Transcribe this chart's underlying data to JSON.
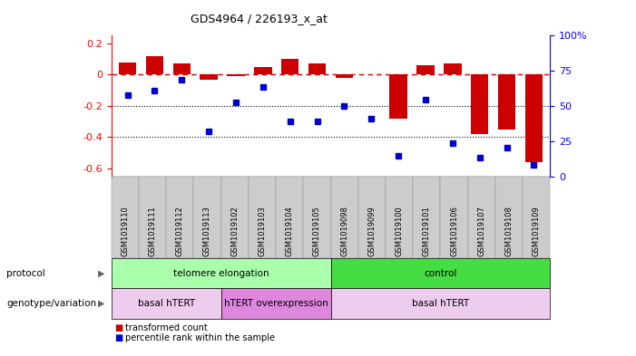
{
  "title": "GDS4964 / 226193_x_at",
  "categories": [
    "GSM1019110",
    "GSM1019111",
    "GSM1019112",
    "GSM1019113",
    "GSM1019102",
    "GSM1019103",
    "GSM1019104",
    "GSM1019105",
    "GSM1019098",
    "GSM1019099",
    "GSM1019100",
    "GSM1019101",
    "GSM1019106",
    "GSM1019107",
    "GSM1019108",
    "GSM1019109"
  ],
  "bar_values": [
    0.08,
    0.12,
    0.07,
    -0.03,
    -0.01,
    0.05,
    0.1,
    0.07,
    -0.02,
    0.0,
    -0.28,
    0.06,
    0.07,
    -0.38,
    -0.35,
    -0.56
  ],
  "dot_values": [
    -0.13,
    -0.1,
    -0.03,
    -0.36,
    -0.18,
    -0.08,
    -0.3,
    -0.3,
    -0.2,
    -0.28,
    -0.52,
    -0.16,
    -0.44,
    -0.53,
    -0.47,
    -0.58
  ],
  "bar_color": "#cc0000",
  "dot_color": "#0000cc",
  "dashed_line_color": "#cc0000",
  "dotted_line_color": "#000000",
  "ylim_left": [
    -0.65,
    0.25
  ],
  "ylim_right": [
    0,
    100
  ],
  "yticks_left": [
    0.2,
    0.0,
    -0.2,
    -0.4,
    -0.6
  ],
  "yticks_right": [
    100,
    75,
    50,
    25,
    0
  ],
  "protocol_labels": [
    {
      "text": "telomere elongation",
      "start": 0,
      "end": 7,
      "color": "#aaffaa"
    },
    {
      "text": "control",
      "start": 8,
      "end": 15,
      "color": "#44dd44"
    }
  ],
  "genotype_labels": [
    {
      "text": "basal hTERT",
      "start": 0,
      "end": 3,
      "color": "#eeccee"
    },
    {
      "text": "hTERT overexpression",
      "start": 4,
      "end": 7,
      "color": "#dd88dd"
    },
    {
      "text": "basal hTERT",
      "start": 8,
      "end": 15,
      "color": "#eeccee"
    }
  ],
  "legend_bar_label": "transformed count",
  "legend_dot_label": "percentile rank within the sample",
  "protocol_row_label": "protocol",
  "genotype_row_label": "genotype/variation",
  "tick_label_bg": "#cccccc",
  "tick_label_border": "#888888"
}
